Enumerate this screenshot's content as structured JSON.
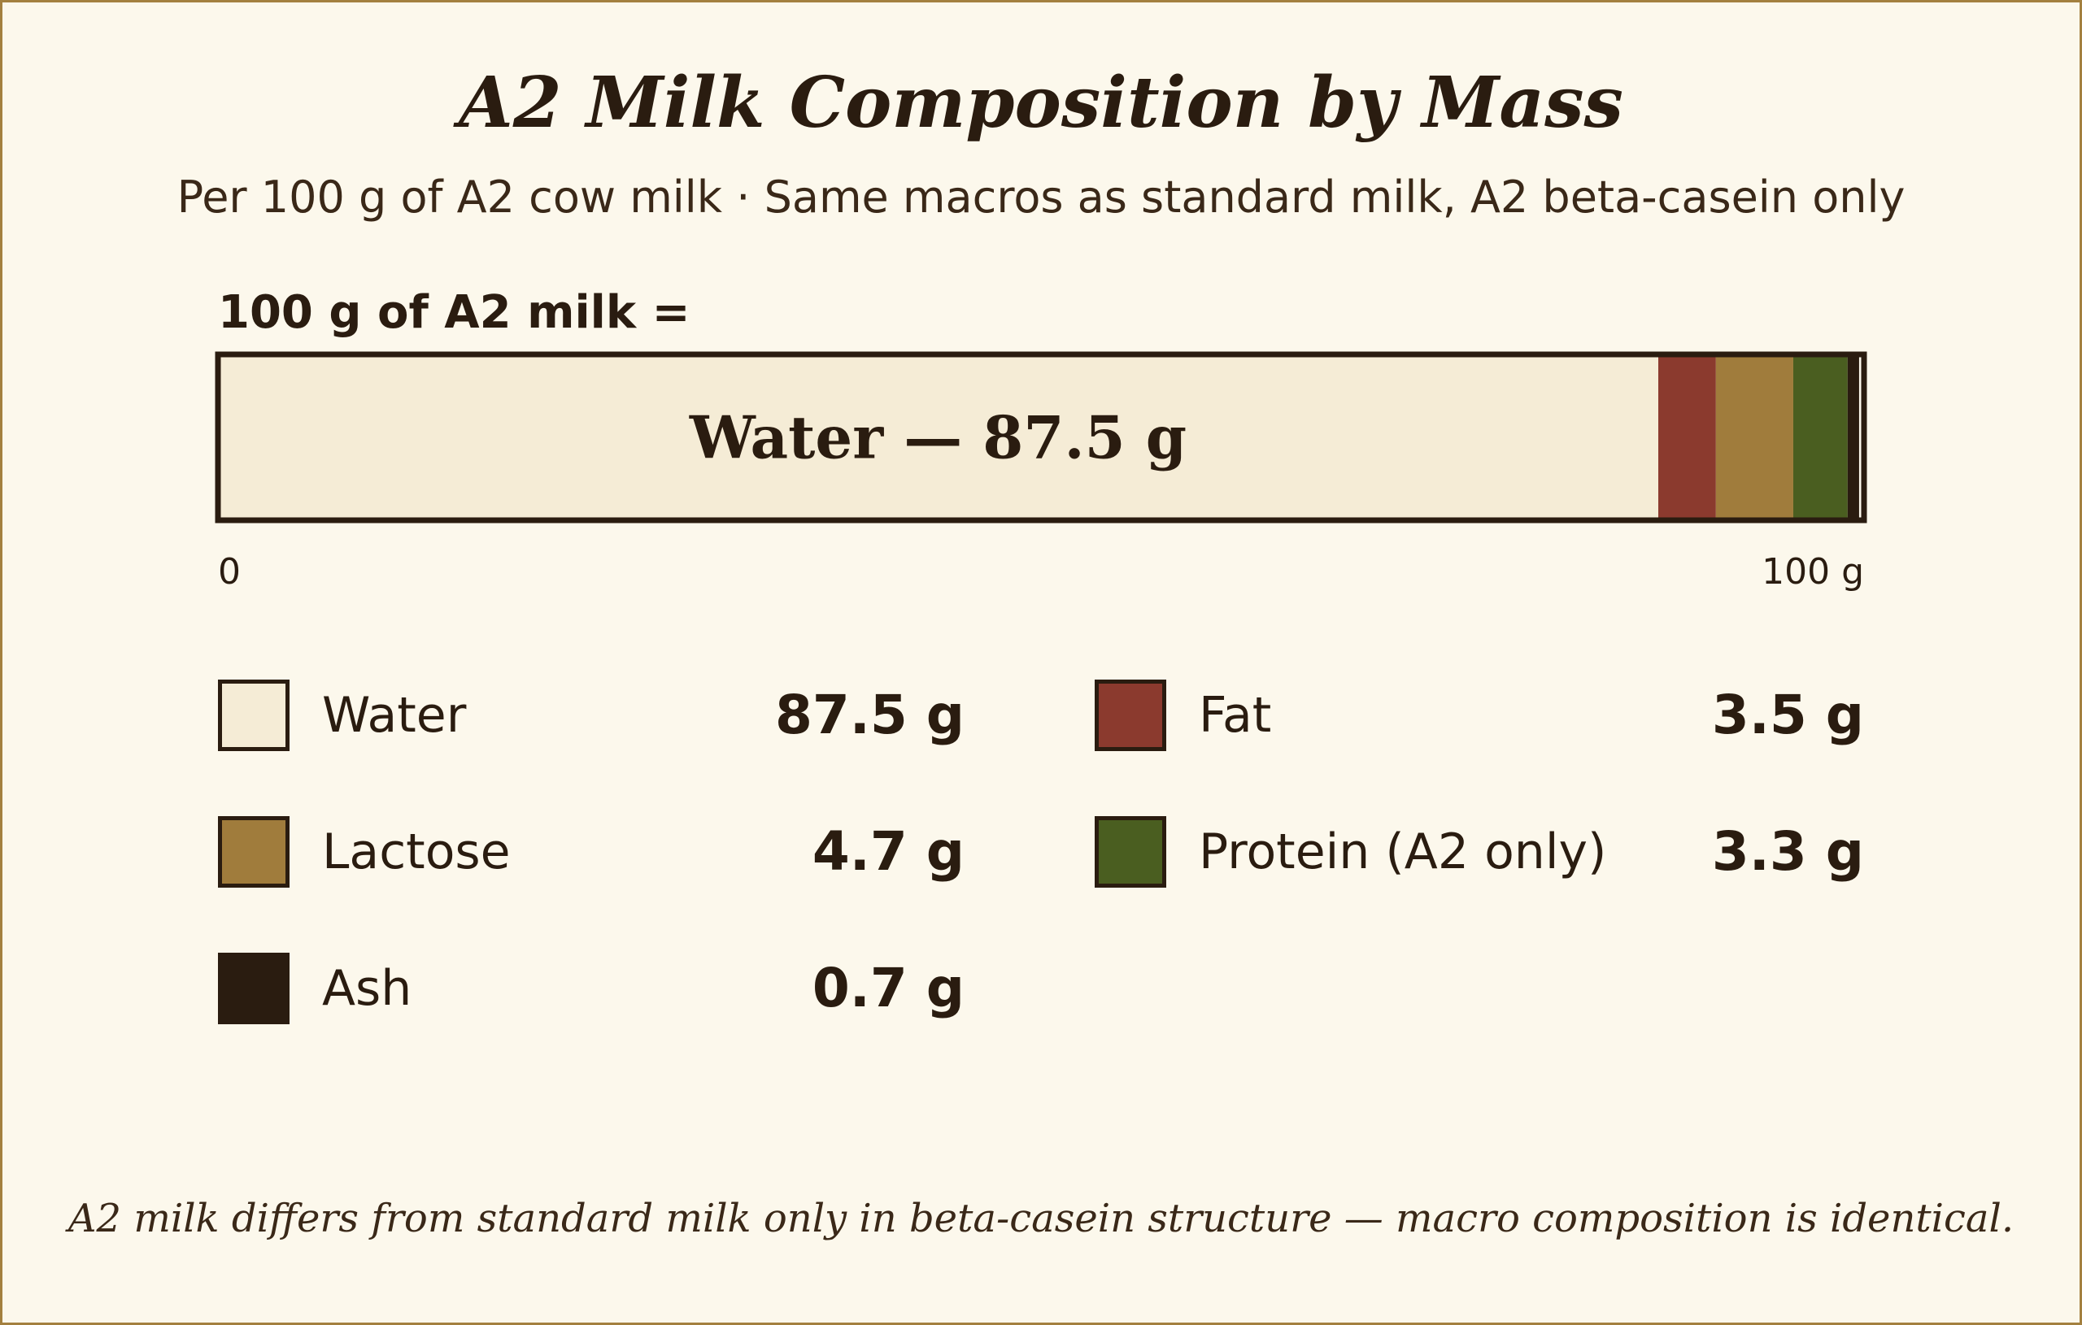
{
  "chart_data": {
    "type": "bar",
    "title": "A2 Milk Composition by Mass",
    "subtitle": "Per 100 g of A2 cow milk · Same macros as standard milk, A2 beta-casein only",
    "bar_heading": "100 g of A2 milk =",
    "bar_inline_label": "Water — 87.5 g",
    "axis": {
      "min_label": "0",
      "max_label": "100 g",
      "xlim": [
        0,
        100
      ]
    },
    "categories": [
      "Water",
      "Fat",
      "Lactose",
      "Protein (A2 only)",
      "Ash"
    ],
    "values": [
      87.5,
      3.5,
      4.7,
      3.3,
      0.7
    ],
    "unit": "g",
    "colors": [
      "#f5ecd6",
      "#8b3a2e",
      "#a07c3c",
      "#4a5e20",
      "#2a1c10"
    ],
    "legend": [
      {
        "label": "Water",
        "value_text": "87.5 g",
        "color": "#f5ecd6"
      },
      {
        "label": "Fat",
        "value_text": "3.5 g",
        "color": "#8b3a2e"
      },
      {
        "label": "Lactose",
        "value_text": "4.7 g",
        "color": "#a07c3c"
      },
      {
        "label": "Protein (A2 only)",
        "value_text": "3.3 g",
        "color": "#4a5e20"
      },
      {
        "label": "Ash",
        "value_text": "0.7 g",
        "color": "#2a1c10"
      }
    ],
    "footnote": "A2 milk differs from standard milk only in beta-casein structure — macro composition is identical."
  }
}
